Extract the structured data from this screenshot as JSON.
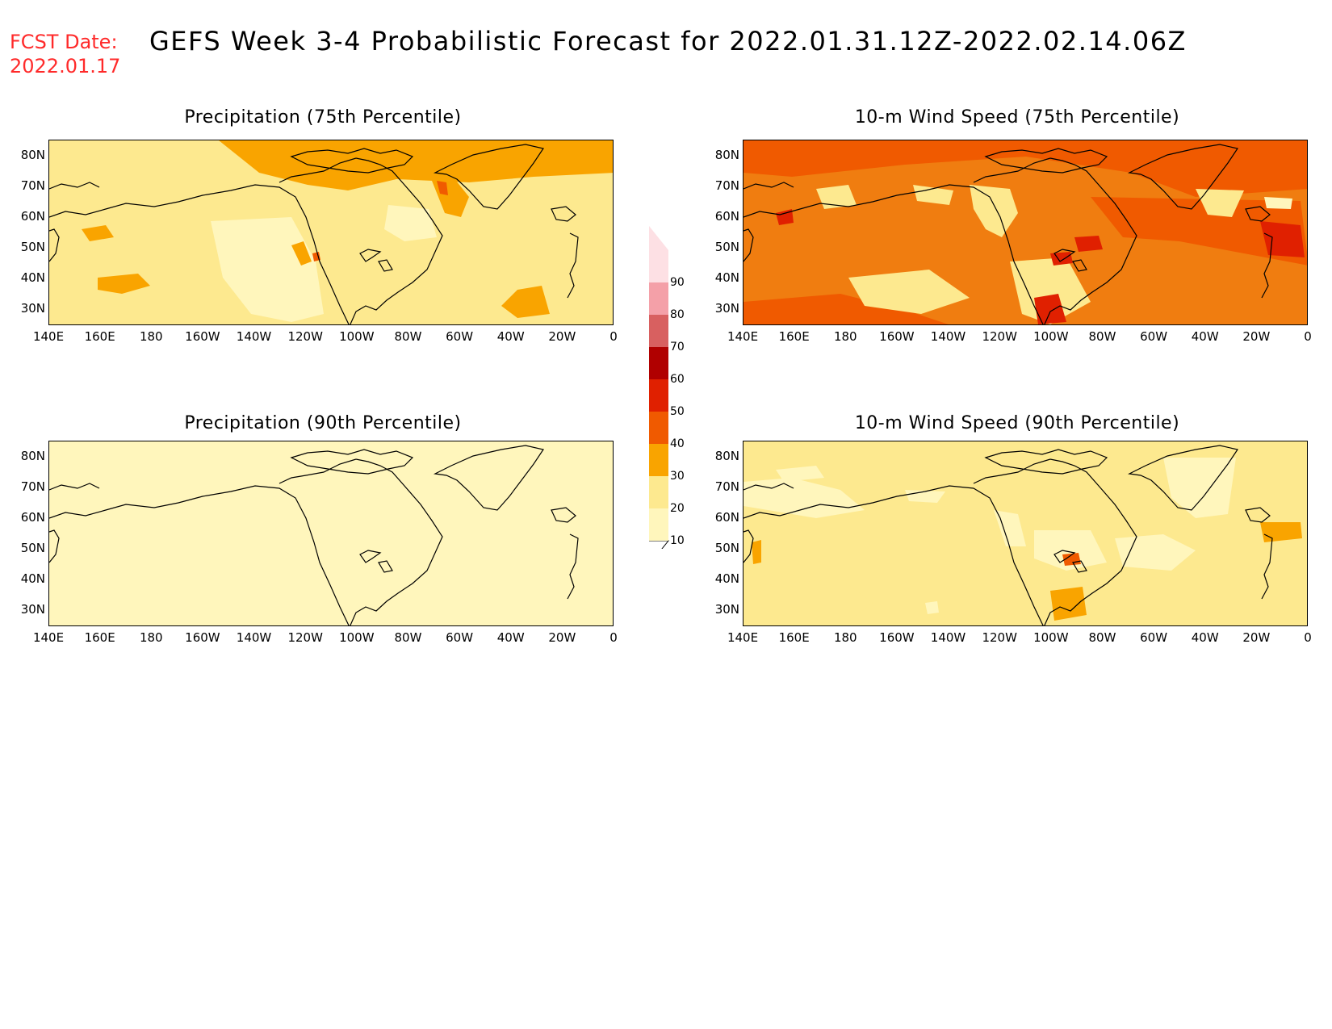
{
  "header": {
    "fcst_label": "FCST Date:",
    "fcst_date": "2022.01.17",
    "title": "GEFS Week 3-4 Probabilistic Forecast for 2022.01.31.12Z-2022.02.14.06Z"
  },
  "panels": [
    {
      "id": "p75",
      "title": "Precipitation (75th Percentile)",
      "base_color": "#fde98f"
    },
    {
      "id": "w75",
      "title": "10-m Wind Speed (75th Percentile)",
      "base_color": "#f07d10"
    },
    {
      "id": "p90",
      "title": "Precipitation (90th Percentile)",
      "base_color": "#fff6bc"
    },
    {
      "id": "w90",
      "title": "10-m Wind Speed (90th Percentile)",
      "base_color": "#fde98f"
    }
  ],
  "axes": {
    "lat_labels": [
      "80N",
      "70N",
      "60N",
      "50N",
      "40N",
      "30N"
    ],
    "lon_labels": [
      "140E",
      "160E",
      "180",
      "160W",
      "140W",
      "120W",
      "100W",
      "80W",
      "60W",
      "40W",
      "20W",
      "0"
    ]
  },
  "colorbar": {
    "levels": [
      "10",
      "20",
      "30",
      "40",
      "50",
      "60",
      "70",
      "80",
      "90"
    ],
    "colors": [
      "#fff6bc",
      "#fde98f",
      "#f9a400",
      "#f05a00",
      "#e02000",
      "#b00000",
      "#d86060",
      "#f4a0a8",
      "#fde0e4"
    ]
  }
}
